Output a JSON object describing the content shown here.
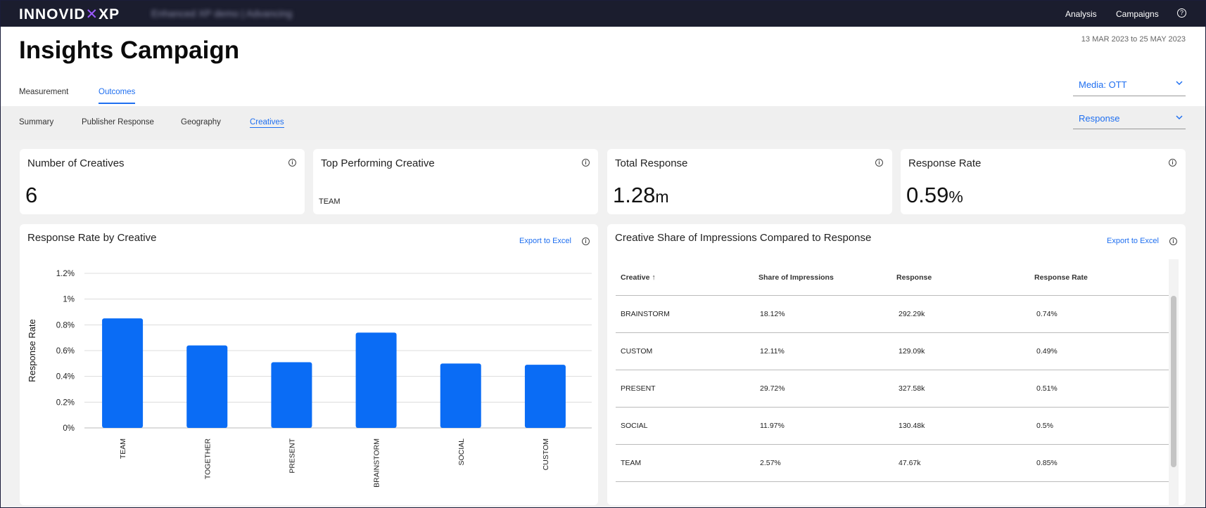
{
  "app": {
    "logo_main": "INNOVID",
    "logo_x": "XP",
    "blurred_title": "Enhanced XP demo | Advancing",
    "nav": {
      "analysis": "Analysis",
      "campaigns": "Campaigns",
      "help": "?"
    }
  },
  "header": {
    "title": "Insights Campaign",
    "date_range": "13 MAR 2023 to 25 MAY 2023",
    "tabs": [
      {
        "label": "Measurement"
      },
      {
        "label": "Outcomes"
      }
    ],
    "media_select": "Media:  OTT",
    "metric_select": "Response"
  },
  "subtabs": [
    {
      "label": "Summary"
    },
    {
      "label": "Publisher Response"
    },
    {
      "label": "Geography"
    },
    {
      "label": "Creatives"
    }
  ],
  "kpis": [
    {
      "title": "Number of Creatives",
      "value": "6",
      "unit": ""
    },
    {
      "title": "Top Performing Creative",
      "value": "TEAM",
      "unit": ""
    },
    {
      "title": "Total Response",
      "value": "1.28",
      "unit": "m"
    },
    {
      "title": "Response Rate",
      "value": "0.59",
      "unit": "%"
    }
  ],
  "info_glyph": "i",
  "rate_chart": {
    "title": "Response Rate by Creative",
    "export_label": "Export to Excel"
  },
  "chart_data": {
    "type": "bar",
    "categories": [
      "TEAM",
      "TOGETHER",
      "PRESENT",
      "BRAINSTORM",
      "SOCIAL",
      "CUSTOM"
    ],
    "values": [
      0.85,
      0.64,
      0.51,
      0.74,
      0.5,
      0.49
    ],
    "ylabel": "Response Rate",
    "yticks": [
      "0%",
      "0.2%",
      "0.4%",
      "0.6%",
      "0.8%",
      "1%",
      "1.2%"
    ],
    "ylim": [
      0,
      1.2
    ],
    "bar_color": "#0a6cf5",
    "grid": true
  },
  "share_table": {
    "title": "Creative Share of Impressions Compared to Response",
    "export_label": "Export to Excel",
    "columns": [
      "Creative ↑",
      "Share of Impressions",
      "Response",
      "Response Rate"
    ],
    "rows": [
      [
        "BRAINSTORM",
        "18.12%",
        "292.29k",
        "0.74%"
      ],
      [
        "CUSTOM",
        "12.11%",
        "129.09k",
        "0.49%"
      ],
      [
        "PRESENT",
        "29.72%",
        "327.58k",
        "0.51%"
      ],
      [
        "SOCIAL",
        "11.97%",
        "130.48k",
        "0.5%"
      ],
      [
        "TEAM",
        "2.57%",
        "47.67k",
        "0.85%"
      ]
    ]
  },
  "colors": {
    "accent": "#1f6ff0",
    "nav_bg": "#1b1d2e",
    "bar": "#0a6cf5"
  }
}
